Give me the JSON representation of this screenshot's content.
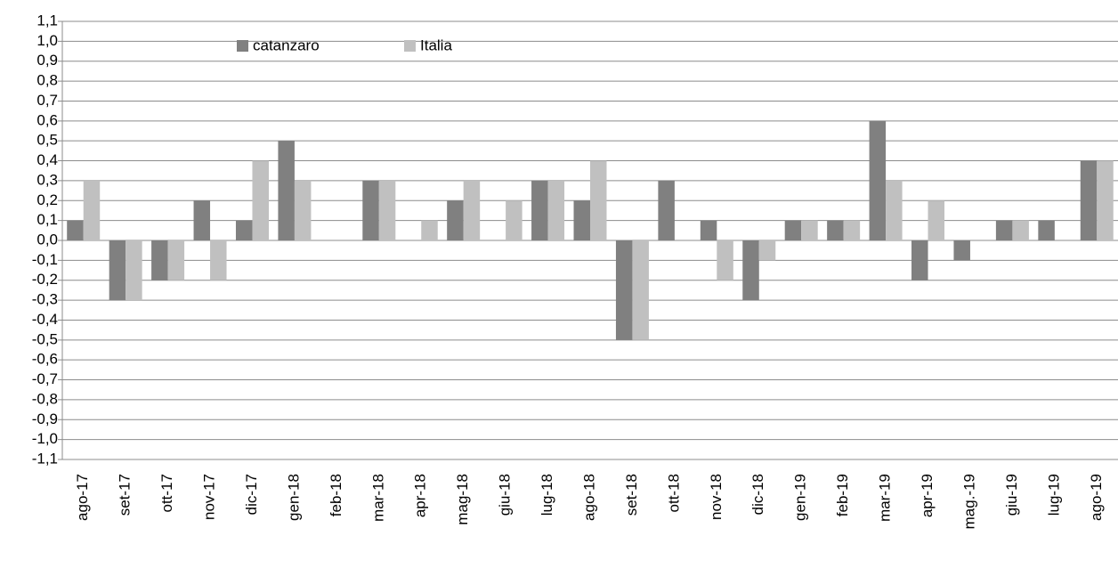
{
  "chart_data": {
    "type": "bar",
    "categories": [
      "ago-17",
      "set-17",
      "ott-17",
      "nov-17",
      "dic-17",
      "gen-18",
      "feb-18",
      "mar-18",
      "apr-18",
      "mag-18",
      "giu-18",
      "lug-18",
      "ago-18",
      "set-18",
      "ott-18",
      "nov-18",
      "dic-18",
      "gen-19",
      "feb-19",
      "mar-19",
      "apr-19",
      "mag.-19",
      "giu-19",
      "lug-19",
      "ago-19"
    ],
    "series": [
      {
        "name": "catanzaro",
        "color": "#808080",
        "values": [
          0.1,
          -0.3,
          -0.2,
          0.2,
          0.1,
          0.5,
          0,
          0.3,
          0,
          0.2,
          0,
          0.3,
          0.2,
          -0.5,
          0.3,
          0.1,
          -0.3,
          0.1,
          0.1,
          0.6,
          -0.2,
          -0.1,
          0.1,
          0.1,
          0.4
        ]
      },
      {
        "name": "Italia",
        "color": "#c0c0c0",
        "values": [
          0.3,
          -0.3,
          -0.2,
          -0.2,
          0.4,
          0.3,
          0,
          0.3,
          0.1,
          0.3,
          0.2,
          0.3,
          0.4,
          -0.5,
          0,
          -0.2,
          -0.1,
          0.1,
          0.1,
          0.3,
          0.2,
          0,
          0.1,
          0,
          0.4
        ]
      }
    ],
    "ylim": [
      -1.1,
      1.1
    ],
    "yticks": [
      {
        "value": -1.1,
        "label": "-1,1"
      },
      {
        "value": -1.0,
        "label": "-1,0"
      },
      {
        "value": -0.9,
        "label": "-0,9"
      },
      {
        "value": -0.8,
        "label": "-0,8"
      },
      {
        "value": -0.7,
        "label": "-0,7"
      },
      {
        "value": -0.6,
        "label": "-0,6"
      },
      {
        "value": -0.5,
        "label": "-0,5"
      },
      {
        "value": -0.4,
        "label": "-0,4"
      },
      {
        "value": -0.3,
        "label": "-0,3"
      },
      {
        "value": -0.2,
        "label": "-0,2"
      },
      {
        "value": -0.1,
        "label": "-0,1"
      },
      {
        "value": 0.0,
        "label": "0,0"
      },
      {
        "value": 0.1,
        "label": "0,1"
      },
      {
        "value": 0.2,
        "label": "0,2"
      },
      {
        "value": 0.3,
        "label": "0,3"
      },
      {
        "value": 0.4,
        "label": "0,4"
      },
      {
        "value": 0.5,
        "label": "0,5"
      },
      {
        "value": 0.6,
        "label": "0,6"
      },
      {
        "value": 0.7,
        "label": "0,7"
      },
      {
        "value": 0.8,
        "label": "0,8"
      },
      {
        "value": 0.9,
        "label": "0,9"
      },
      {
        "value": 1.0,
        "label": "1,0"
      },
      {
        "value": 1.1,
        "label": "1,1"
      }
    ],
    "grid": true
  }
}
